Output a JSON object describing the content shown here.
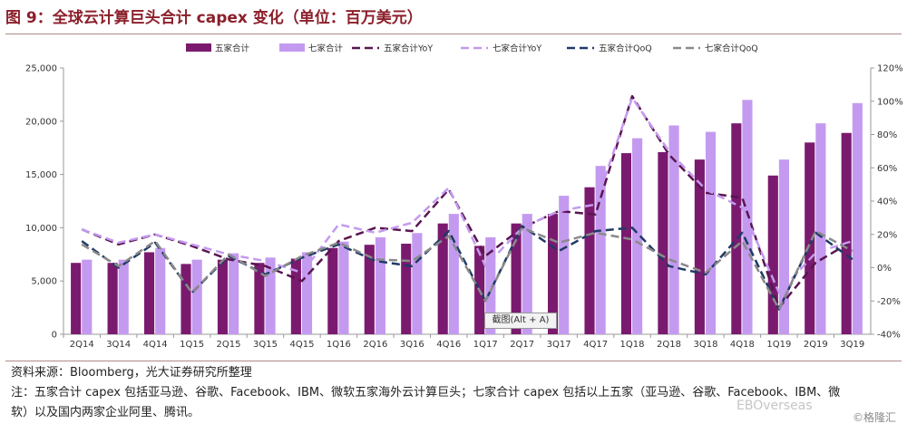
{
  "title": "图 9：全球云计算巨头合计 capex 变化（单位：百万美元）",
  "source": "资料来源：Bloomberg，光大证券研究所整理",
  "note": "注：五家合计 capex 包括亚马逊、谷歌、Facebook、IBM、微软五家海外云计算巨头；七家合计 capex 包括以上五家（亚马逊、谷歌、Facebook、IBM、微软）以及国内两家企业阿里、腾讯。",
  "watermark": "EBOverseas",
  "watermark2": "©格隆汇",
  "tooltip": "截图(Alt + A)",
  "chart_data": {
    "type": "bar+line",
    "categories": [
      "2Q14",
      "3Q14",
      "4Q14",
      "1Q15",
      "2Q15",
      "3Q15",
      "4Q15",
      "1Q16",
      "2Q16",
      "3Q16",
      "4Q16",
      "1Q17",
      "2Q17",
      "3Q17",
      "4Q17",
      "1Q18",
      "2Q18",
      "3Q18",
      "4Q18",
      "1Q19",
      "2Q19",
      "3Q19"
    ],
    "left_axis": {
      "ylim": [
        0,
        25000
      ],
      "ticks": [
        "0",
        "5,000",
        "10,000",
        "15,000",
        "20,000",
        "25,000"
      ]
    },
    "right_axis": {
      "ylim": [
        -40,
        120
      ],
      "ticks": [
        "-40%",
        "-20%",
        "0%",
        "20%",
        "40%",
        "60%",
        "80%",
        "100%",
        "120%"
      ]
    },
    "legend": {
      "placement": "top"
    },
    "colors": {
      "five": "#7a1a6f",
      "seven": "#c49af0",
      "five_yoy": "#5a1550",
      "seven_yoy": "#c49af0",
      "five_qoq": "#1f3a66",
      "seven_qoq": "#8a8a8a"
    },
    "bars": [
      {
        "name": "五家合计",
        "values": [
          6700,
          6700,
          7700,
          6600,
          7000,
          6700,
          7100,
          8100,
          8400,
          8500,
          10400,
          8300,
          10400,
          11300,
          13800,
          17000,
          17100,
          16400,
          19800,
          14900,
          18000,
          18900
        ]
      },
      {
        "name": "七家合计",
        "values": [
          7000,
          7000,
          8100,
          7000,
          7600,
          7200,
          7700,
          8700,
          9100,
          9500,
          11300,
          9100,
          11300,
          13000,
          15800,
          18400,
          19600,
          19000,
          22000,
          16400,
          19800,
          21700
        ]
      }
    ],
    "lines": [
      {
        "name": "五家合计YoY",
        "values": [
          23,
          14,
          20,
          13,
          5,
          1,
          -8,
          16,
          24,
          22,
          47,
          7,
          24,
          34,
          32,
          103,
          68,
          45,
          42,
          -24,
          3,
          16
        ]
      },
      {
        "name": "七家合计YoY",
        "values": [
          23,
          15,
          20,
          14,
          8,
          4,
          -3,
          26,
          21,
          27,
          48,
          1,
          24,
          34,
          38,
          102,
          70,
          47,
          36,
          -15,
          9,
          16
        ]
      },
      {
        "name": "五家合计QoQ",
        "values": [
          16,
          0,
          15,
          -15,
          7,
          -4,
          6,
          14,
          4,
          1,
          22,
          -20,
          25,
          10,
          22,
          24,
          1,
          -4,
          21,
          -25,
          21,
          5
        ]
      },
      {
        "name": "七家合计QoQ",
        "values": [
          14,
          1,
          16,
          -15,
          8,
          -5,
          7,
          15,
          5,
          4,
          19,
          -20,
          24,
          15,
          21,
          17,
          5,
          -3,
          16,
          -25,
          22,
          10
        ]
      }
    ]
  }
}
